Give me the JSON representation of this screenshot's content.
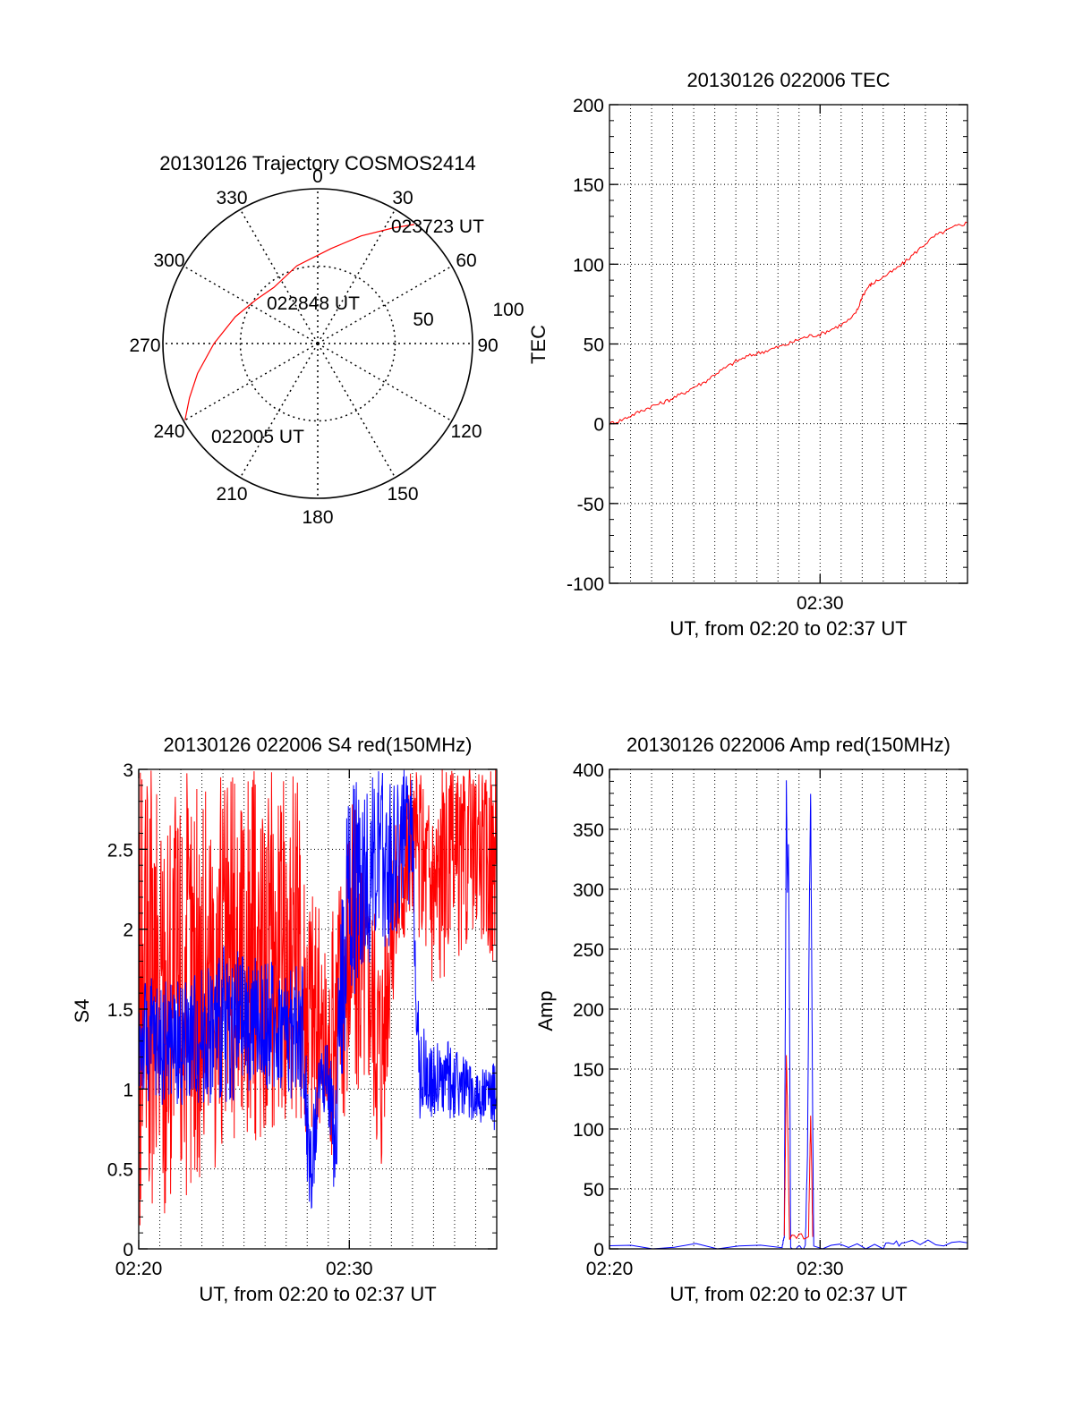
{
  "colors": {
    "red": "#ff0000",
    "blue": "#0000ff",
    "axis": "#000000",
    "grid": "#000000"
  },
  "chart_data": [
    {
      "type": "polar",
      "title": "20130126 Trajectory COSMOS2414",
      "angle_labels": [
        "0",
        "30",
        "60",
        "90",
        "120",
        "150",
        "180",
        "210",
        "240",
        "270",
        "300",
        "330"
      ],
      "radial_tick_labels": [
        "50",
        "100"
      ],
      "rlim": [
        0,
        100
      ],
      "grid": true,
      "series": [
        {
          "color": "red",
          "points_az_r": [
            [
              240,
              99
            ],
            [
              247,
              90
            ],
            [
              256,
              80
            ],
            [
              270,
              67
            ],
            [
              288,
              56
            ],
            [
              305,
              49
            ],
            [
              322,
              46
            ],
            [
              345,
              52
            ],
            [
              8,
              62
            ],
            [
              22,
              75
            ],
            [
              33,
              89
            ],
            [
              39,
              99
            ]
          ]
        }
      ],
      "annotations": [
        {
          "text": "022005 UT",
          "az": 240,
          "r": 99
        },
        {
          "text": "022848 UT",
          "az": 322,
          "r": 46
        },
        {
          "text": "023723 UT",
          "az": 39,
          "r": 99
        }
      ]
    },
    {
      "type": "line",
      "title": "20130126 022006 TEC",
      "xlabel": "UT, from 02:20 to 02:37 UT",
      "ylabel": "TEC",
      "xlim": [
        0,
        17
      ],
      "ylim": [
        -100,
        200
      ],
      "x_ticks": [
        {
          "x": 10,
          "label": "02:30"
        }
      ],
      "y_ticks": [
        "-100",
        "-50",
        "0",
        "50",
        "100",
        "150",
        "200"
      ],
      "grid": true,
      "series": [
        {
          "color": "red",
          "x": [
            0,
            0.5,
            1,
            1.5,
            2,
            2.5,
            3,
            3.5,
            4,
            4.5,
            5,
            5.5,
            6,
            6.5,
            7,
            7.5,
            8,
            8.5,
            9,
            9.5,
            10,
            10.5,
            11,
            11.5,
            11.8,
            12,
            12.3,
            12.5,
            13,
            13.5,
            14,
            14.5,
            15,
            15.5,
            16,
            16.5,
            17
          ],
          "y": [
            0,
            2,
            5,
            8,
            11,
            13,
            16,
            19,
            23,
            26,
            31,
            35,
            39,
            42,
            44,
            46,
            48,
            50,
            53,
            55,
            56,
            59,
            62,
            66,
            72,
            80,
            86,
            88,
            92,
            96,
            101,
            107,
            113,
            118,
            121,
            124,
            126
          ]
        }
      ]
    },
    {
      "type": "line",
      "title": "20130126 022006 S4 red(150MHz)",
      "xlabel": "UT, from 02:20 to 02:37 UT",
      "ylabel": "S4",
      "xlim": [
        0,
        17
      ],
      "ylim": [
        0,
        3
      ],
      "x_ticks": [
        {
          "x": 0,
          "label": "02:20"
        },
        {
          "x": 10,
          "label": "02:30"
        }
      ],
      "y_ticks": [
        "0",
        "0.5",
        "1",
        "1.5",
        "2",
        "2.5",
        "3"
      ],
      "grid": true,
      "series": [
        {
          "color": "red",
          "description_free": true,
          "envelope": [
            [
              0,
              0,
              3
            ],
            [
              4,
              0.5,
              3
            ],
            [
              7.5,
              0.8,
              3
            ],
            [
              8,
              0.7,
              2.6
            ],
            [
              8.5,
              0.6,
              2.2
            ],
            [
              9,
              0.5,
              1.9
            ],
            [
              9.5,
              0.7,
              2.5
            ],
            [
              10,
              0.9,
              3
            ],
            [
              11,
              1.0,
              2.4
            ],
            [
              11.5,
              0.4,
              2.1
            ],
            [
              12,
              1.5,
              2.6
            ],
            [
              12.5,
              1.8,
              3
            ],
            [
              13,
              2.0,
              3
            ],
            [
              14,
              1.6,
              3
            ],
            [
              15,
              1.7,
              3
            ],
            [
              16,
              2.0,
              3
            ],
            [
              17,
              1.7,
              3
            ]
          ]
        },
        {
          "color": "blue",
          "envelope": [
            [
              0,
              0.9,
              1.7
            ],
            [
              2,
              0.9,
              1.7
            ],
            [
              4,
              0.9,
              1.9
            ],
            [
              6,
              1.0,
              1.8
            ],
            [
              7.8,
              0.9,
              1.8
            ],
            [
              8,
              0.3,
              1.2
            ],
            [
              8.2,
              0.15,
              0.8
            ],
            [
              8.6,
              0.9,
              1.3
            ],
            [
              9,
              0.8,
              1.3
            ],
            [
              9.3,
              0.2,
              1.0
            ],
            [
              9.6,
              1.0,
              2.2
            ],
            [
              10,
              1.5,
              3
            ],
            [
              11,
              1.8,
              3
            ],
            [
              12,
              1.9,
              3
            ],
            [
              13,
              2.2,
              3
            ],
            [
              13.3,
              0.8,
              1.5
            ],
            [
              14,
              0.8,
              1.3
            ],
            [
              15,
              0.8,
              1.3
            ],
            [
              16,
              0.8,
              1.1
            ],
            [
              17,
              0.7,
              1.2
            ]
          ]
        }
      ]
    },
    {
      "type": "line",
      "title": "20130126 022006 Amp red(150MHz)",
      "xlabel": "UT, from 02:20 to 02:37 UT",
      "ylabel": "Amp",
      "xlim": [
        0,
        17
      ],
      "ylim": [
        0,
        400
      ],
      "x_ticks": [
        {
          "x": 0,
          "label": "02:20"
        },
        {
          "x": 10,
          "label": "02:30"
        }
      ],
      "y_ticks": [
        "0",
        "50",
        "100",
        "150",
        "200",
        "250",
        "300",
        "350",
        "400"
      ],
      "grid": true,
      "series": [
        {
          "color": "blue",
          "x": [
            0,
            8.2,
            8.3,
            8.35,
            8.4,
            8.45,
            8.5,
            8.55,
            8.6,
            9.3,
            9.4,
            9.5,
            9.55,
            9.6,
            9.65,
            9.7,
            13,
            14,
            17
          ],
          "y": [
            2,
            2,
            10,
            200,
            390,
            300,
            340,
            200,
            2,
            2,
            80,
            300,
            380,
            250,
            100,
            2,
            2,
            5,
            5
          ]
        },
        {
          "color": "red",
          "x": [
            8.3,
            8.35,
            8.4,
            8.45,
            8.5,
            8.55,
            9.45,
            9.5,
            9.55,
            9.6,
            9.65
          ],
          "y": [
            10,
            80,
            160,
            120,
            60,
            10,
            10,
            60,
            110,
            70,
            10
          ]
        }
      ]
    }
  ]
}
